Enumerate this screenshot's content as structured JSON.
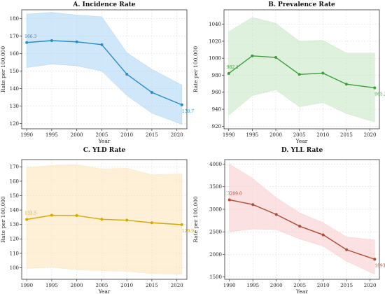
{
  "chart_data": [
    {
      "type": "line",
      "title": "A. Incidence Rate",
      "xlabel": "Year",
      "ylabel": "Rate per 100,000",
      "x": [
        1990,
        1995,
        2000,
        2005,
        2010,
        2015,
        2021
      ],
      "xticks": [
        1990,
        1995,
        2000,
        2005,
        2010,
        2015,
        2020
      ],
      "xlim": [
        1989,
        2022
      ],
      "ylim": [
        117,
        185
      ],
      "yticks": [
        120,
        130,
        140,
        150,
        160,
        170,
        180
      ],
      "grid": true,
      "color": "#2a8bc9",
      "band_color": "#a9d4f5",
      "series": [
        {
          "values": [
            166.3,
            167.4,
            166.7,
            165.1,
            148.2,
            137.8,
            130.7
          ],
          "lower": [
            152.0,
            154.0,
            153.0,
            150.0,
            136.0,
            126.0,
            119.5
          ],
          "upper": [
            182.5,
            183.5,
            182.0,
            181.0,
            160.5,
            151.0,
            142.0
          ]
        }
      ],
      "annotations": [
        {
          "label": "166.3",
          "x": 1990,
          "y": 166.3
        },
        {
          "label": "130.7",
          "x": 2021,
          "y": 130.7
        }
      ]
    },
    {
      "type": "line",
      "title": "B. Prevalence Rate",
      "xlabel": "Year",
      "ylabel": "Rate per 100,000",
      "x": [
        1990,
        1995,
        2000,
        2005,
        2010,
        2015,
        2021
      ],
      "xticks": [
        1990,
        1995,
        2000,
        2005,
        2010,
        2015,
        2020
      ],
      "xlim": [
        1989,
        2022
      ],
      "ylim": [
        917,
        1057
      ],
      "yticks": [
        920,
        940,
        960,
        980,
        1000,
        1020,
        1040
      ],
      "grid": true,
      "color": "#3a9e3a",
      "band_color": "#c3e6c0",
      "series": [
        {
          "values": [
            982.1,
            1002.8,
            1001.0,
            981.0,
            982.5,
            969.5,
            965.2
          ],
          "lower": [
            933.0,
            956.0,
            963.0,
            943.0,
            948.0,
            935.0,
            925.0
          ],
          "upper": [
            1031.0,
            1048.0,
            1041.0,
            1020.0,
            1021.0,
            1006.0,
            1006.0
          ]
        }
      ],
      "annotations": [
        {
          "label": "982.1",
          "x": 1990,
          "y": 982.1
        },
        {
          "label": "965.2",
          "x": 2021,
          "y": 965.2
        }
      ]
    },
    {
      "type": "line",
      "title": "C. YLD Rate",
      "xlabel": "Year",
      "ylabel": "Rate per 100,000",
      "x": [
        1990,
        1995,
        2000,
        2005,
        2010,
        2015,
        2021
      ],
      "xticks": [
        1990,
        1995,
        2000,
        2005,
        2010,
        2015,
        2020
      ],
      "xlim": [
        1989,
        2022
      ],
      "ylim": [
        92,
        175
      ],
      "yticks": [
        100,
        110,
        120,
        130,
        140,
        150,
        160,
        170
      ],
      "grid": true,
      "color": "#d4a800",
      "band_color": "#fde3b6",
      "series": [
        {
          "values": [
            133.5,
            136.4,
            136.2,
            133.6,
            133.0,
            131.2,
            129.9
          ],
          "lower": [
            99.5,
            100.5,
            98.5,
            98.0,
            97.5,
            96.0,
            95.5
          ],
          "upper": [
            169.5,
            171.0,
            171.5,
            168.5,
            169.0,
            164.5,
            165.0
          ]
        }
      ],
      "annotations": [
        {
          "label": "133.5",
          "x": 1990,
          "y": 133.5
        },
        {
          "label": "129.9",
          "x": 2021,
          "y": 129.9
        }
      ]
    },
    {
      "type": "line",
      "title": "D. YLL Rate",
      "xlabel": "Year",
      "ylabel": "Rate per 100,000",
      "x": [
        1990,
        1995,
        2000,
        2005,
        2010,
        2015,
        2021
      ],
      "xticks": [
        1990,
        1995,
        2000,
        2005,
        2010,
        2015,
        2020
      ],
      "xlim": [
        1989,
        2022
      ],
      "ylim": [
        1450,
        4100
      ],
      "yticks": [
        1500,
        2000,
        2500,
        3000,
        3500,
        4000
      ],
      "grid": true,
      "color": "#b04a35",
      "band_color": "#f7c9c9",
      "series": [
        {
          "values": [
            3209.0,
            3105.0,
            2885.0,
            2625.0,
            2435.0,
            2105.0,
            1893.8
          ],
          "lower": [
            2500.0,
            2565.0,
            2550.0,
            2345.0,
            2185.0,
            1850.0,
            1565.0
          ],
          "upper": [
            4000.0,
            3680.0,
            3255.0,
            2920.0,
            2700.0,
            2385.0,
            2320.0
          ]
        }
      ],
      "annotations": [
        {
          "label": "3209.0",
          "x": 1990,
          "y": 3209.0
        },
        {
          "label": "1893.8",
          "x": 2021,
          "y": 1893.8
        }
      ]
    }
  ]
}
